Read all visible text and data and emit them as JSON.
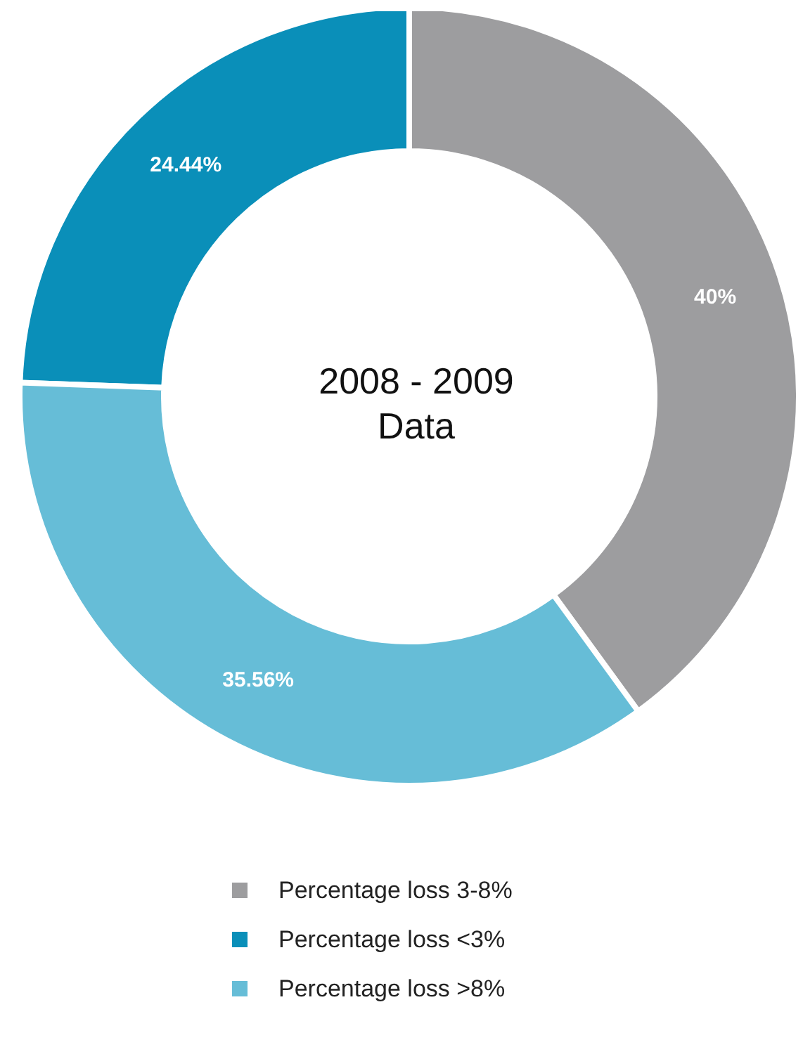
{
  "chart_data": {
    "type": "donut",
    "title": "2008 - 2009\nData",
    "categories": [
      "Percentage loss 3-8%",
      "Percentage loss <3%",
      "Percentage loss >8%"
    ],
    "values": [
      40,
      24.44,
      35.56
    ],
    "colors": [
      "#9d9d9f",
      "#0a8fb9",
      "#66bdd7"
    ],
    "value_labels": [
      "40%",
      "24.44%",
      "35.56%"
    ],
    "legend": "bottom"
  }
}
